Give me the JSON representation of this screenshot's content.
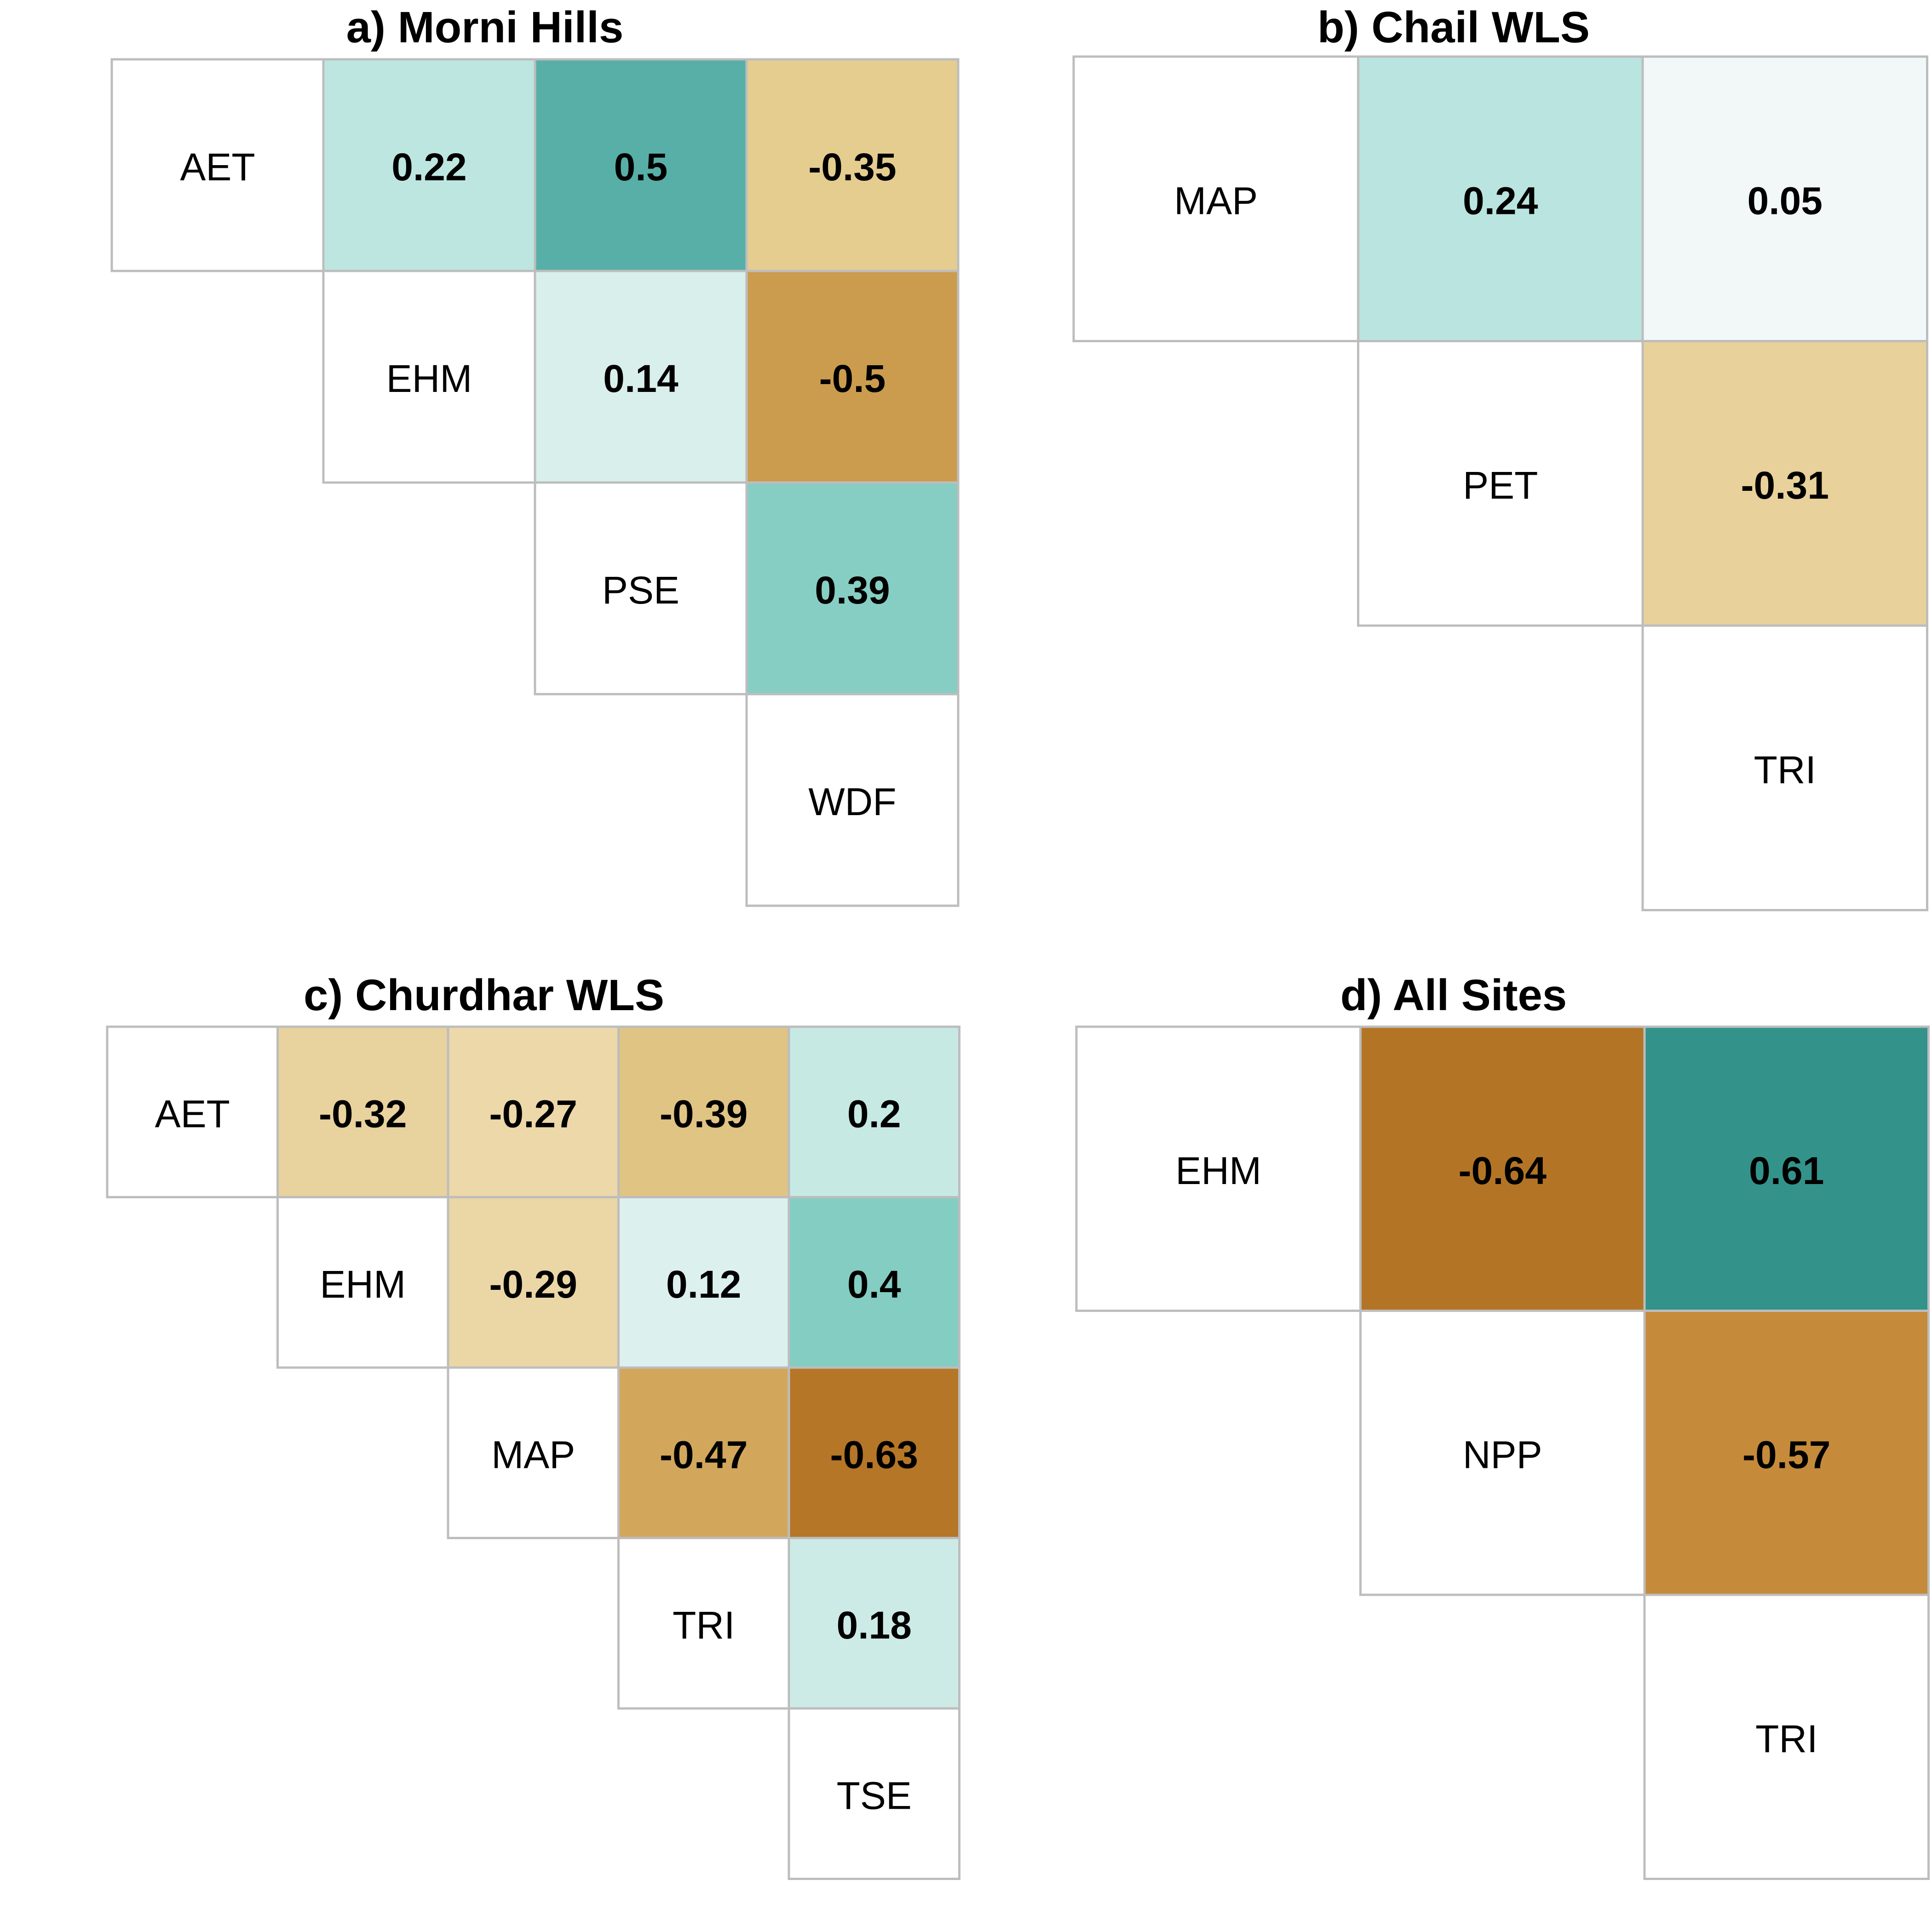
{
  "chart_data": [
    {
      "type": "heatmap",
      "title": "a) Morni Hills",
      "variables": [
        "AET",
        "EHM",
        "PSE",
        "WDF"
      ],
      "correlations": [
        {
          "row": "AET",
          "col": "EHM",
          "value": 0.22,
          "color": "#bde6e1"
        },
        {
          "row": "AET",
          "col": "PSE",
          "value": 0.5,
          "color": "#57afa7"
        },
        {
          "row": "AET",
          "col": "WDF",
          "value": -0.35,
          "color": "#e5cd90"
        },
        {
          "row": "EHM",
          "col": "PSE",
          "value": 0.14,
          "color": "#d9efec"
        },
        {
          "row": "EHM",
          "col": "WDF",
          "value": -0.5,
          "color": "#cb9c4e"
        },
        {
          "row": "PSE",
          "col": "WDF",
          "value": 0.39,
          "color": "#86cec3"
        }
      ]
    },
    {
      "type": "heatmap",
      "title": "b) Chail WLS",
      "variables": [
        "MAP",
        "PET",
        "TRI"
      ],
      "correlations": [
        {
          "row": "MAP",
          "col": "PET",
          "value": 0.24,
          "color": "#bae4df"
        },
        {
          "row": "MAP",
          "col": "TRI",
          "value": 0.05,
          "color": "#f1f8f7"
        },
        {
          "row": "PET",
          "col": "TRI",
          "value": -0.31,
          "color": "#e8d19a"
        }
      ]
    },
    {
      "type": "heatmap",
      "title": "c) Churdhar WLS",
      "variables": [
        "AET",
        "EHM",
        "MAP",
        "TRI",
        "TSE"
      ],
      "correlations": [
        {
          "row": "AET",
          "col": "EHM",
          "value": -0.32,
          "color": "#e8d29e"
        },
        {
          "row": "AET",
          "col": "MAP",
          "value": -0.27,
          "color": "#ecd8a9"
        },
        {
          "row": "AET",
          "col": "TRI",
          "value": -0.39,
          "color": "#e0c484"
        },
        {
          "row": "AET",
          "col": "TSE",
          "value": 0.2,
          "color": "#c6e9e4"
        },
        {
          "row": "EHM",
          "col": "MAP",
          "value": -0.29,
          "color": "#ebd6a6"
        },
        {
          "row": "EHM",
          "col": "TRI",
          "value": 0.12,
          "color": "#dcf0ee"
        },
        {
          "row": "EHM",
          "col": "TSE",
          "value": 0.4,
          "color": "#84cdc2"
        },
        {
          "row": "MAP",
          "col": "TRI",
          "value": -0.47,
          "color": "#d2a75c"
        },
        {
          "row": "MAP",
          "col": "TSE",
          "value": -0.63,
          "color": "#b57627"
        },
        {
          "row": "TRI",
          "col": "TSE",
          "value": 0.18,
          "color": "#cdebe6"
        }
      ]
    },
    {
      "type": "heatmap",
      "title": "d) All Sites",
      "variables": [
        "EHM",
        "NPP",
        "TRI"
      ],
      "correlations": [
        {
          "row": "EHM",
          "col": "NPP",
          "value": -0.64,
          "color": "#b37525"
        },
        {
          "row": "EHM",
          "col": "TRI",
          "value": 0.61,
          "color": "#33938b"
        },
        {
          "row": "NPP",
          "col": "TRI",
          "value": -0.57,
          "color": "#c58b3b"
        }
      ]
    }
  ]
}
